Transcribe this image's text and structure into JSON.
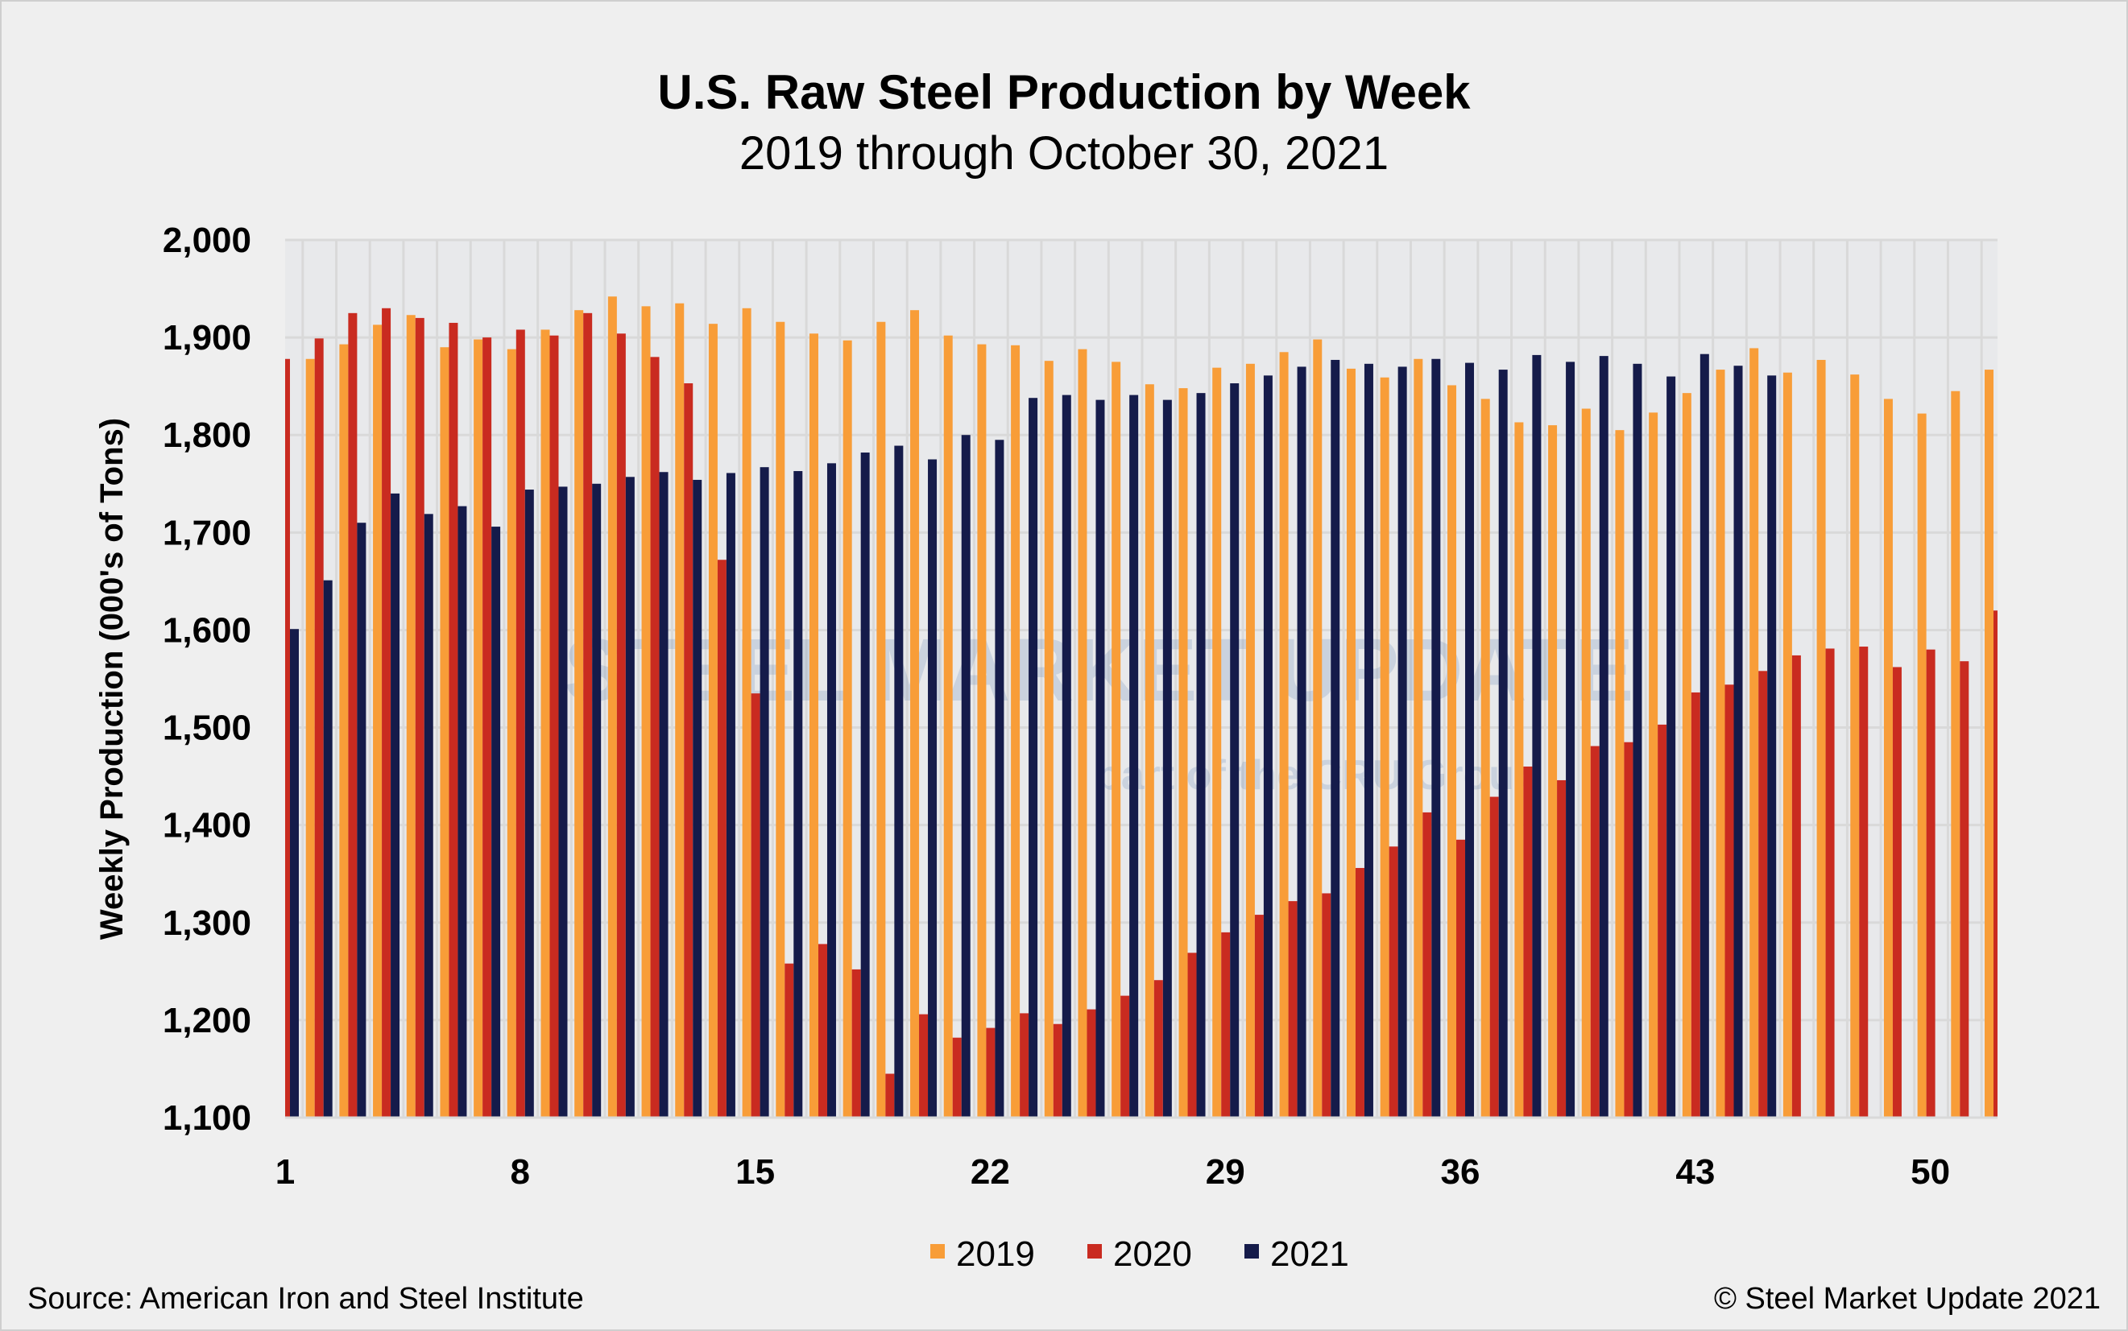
{
  "chart_data": {
    "type": "bar",
    "title": "U.S. Raw Steel Production by Week",
    "subtitle": "2019 through October 30, 2021",
    "ylabel": "Weekly Production (000's of Tons)",
    "xlabel": "",
    "ylim": [
      1100,
      2000
    ],
    "yticks": [
      "1,100",
      "1,200",
      "1,300",
      "1,400",
      "1,500",
      "1,600",
      "1,700",
      "1,800",
      "1,900",
      "2,000"
    ],
    "ytick_values": [
      1100,
      1200,
      1300,
      1400,
      1500,
      1600,
      1700,
      1800,
      1900,
      2000
    ],
    "xtick_labels": [
      "1",
      "8",
      "15",
      "22",
      "29",
      "36",
      "43",
      "50"
    ],
    "xtick_weeks": [
      1,
      8,
      15,
      22,
      29,
      36,
      43,
      50
    ],
    "grid": true,
    "legend_placement": "bottom",
    "categories": [
      1,
      2,
      3,
      4,
      5,
      6,
      7,
      8,
      9,
      10,
      11,
      12,
      13,
      14,
      15,
      16,
      17,
      18,
      19,
      20,
      21,
      22,
      23,
      24,
      25,
      26,
      27,
      28,
      29,
      30,
      31,
      32,
      33,
      34,
      35,
      36,
      37,
      38,
      39,
      40,
      41,
      42,
      43,
      44,
      45,
      46,
      47,
      48,
      49,
      50,
      51,
      52
    ],
    "series": [
      {
        "name": "2019",
        "color": "#f89d38",
        "values": [
          null,
          1878,
          1893,
          1913,
          1923,
          1890,
          1898,
          1888,
          1908,
          1928,
          1942,
          1932,
          1935,
          1914,
          1930,
          1916,
          1904,
          1897,
          1916,
          1928,
          1902,
          1893,
          1892,
          1876,
          1888,
          1875,
          1852,
          1848,
          1869,
          1873,
          1885,
          1898,
          1868,
          1859,
          1878,
          1851,
          1837,
          1813,
          1810,
          1827,
          1805,
          1823,
          1843,
          1867,
          1889,
          1864,
          1877,
          1862,
          1837,
          1822,
          1845,
          1867
        ]
      },
      {
        "name": "2020",
        "color": "#c92b20",
        "values": [
          1878,
          1899,
          1925,
          1930,
          1920,
          1915,
          1900,
          1908,
          1902,
          1925,
          1904,
          1880,
          1853,
          1672,
          1535,
          1258,
          1278,
          1252,
          1145,
          1206,
          1182,
          1192,
          1207,
          1196,
          1211,
          1225,
          1241,
          1269,
          1290,
          1308,
          1322,
          1330,
          1356,
          1378,
          1413,
          1385,
          1429,
          1460,
          1446,
          1481,
          1485,
          1503,
          1536,
          1544,
          1558,
          1574,
          1581,
          1583,
          1562,
          1580,
          1568,
          1620
        ]
      },
      {
        "name": "2021",
        "color": "#151b4a",
        "values": [
          1601,
          1651,
          1710,
          1740,
          1719,
          1727,
          1706,
          1744,
          1747,
          1750,
          1757,
          1762,
          1754,
          1761,
          1767,
          1763,
          1771,
          1782,
          1789,
          1775,
          1800,
          1795,
          1838,
          1841,
          1836,
          1841,
          1836,
          1843,
          1853,
          1861,
          1870,
          1877,
          1873,
          1870,
          1878,
          1874,
          1867,
          1882,
          1875,
          1881,
          1873,
          1860,
          1883,
          1871,
          1861,
          null,
          null,
          null,
          null,
          null,
          null,
          null
        ]
      }
    ]
  },
  "footer": {
    "source": "Source: American Iron and Steel Institute",
    "copyright": "© Steel Market Update 2021"
  },
  "watermark": {
    "line1": "STEEL MARKET UPDATE",
    "line2": "part of the CRU Group"
  },
  "colors": {
    "background": "#efefef",
    "plot_background": "#e8e9eb",
    "grid": "#d9d9d9"
  }
}
